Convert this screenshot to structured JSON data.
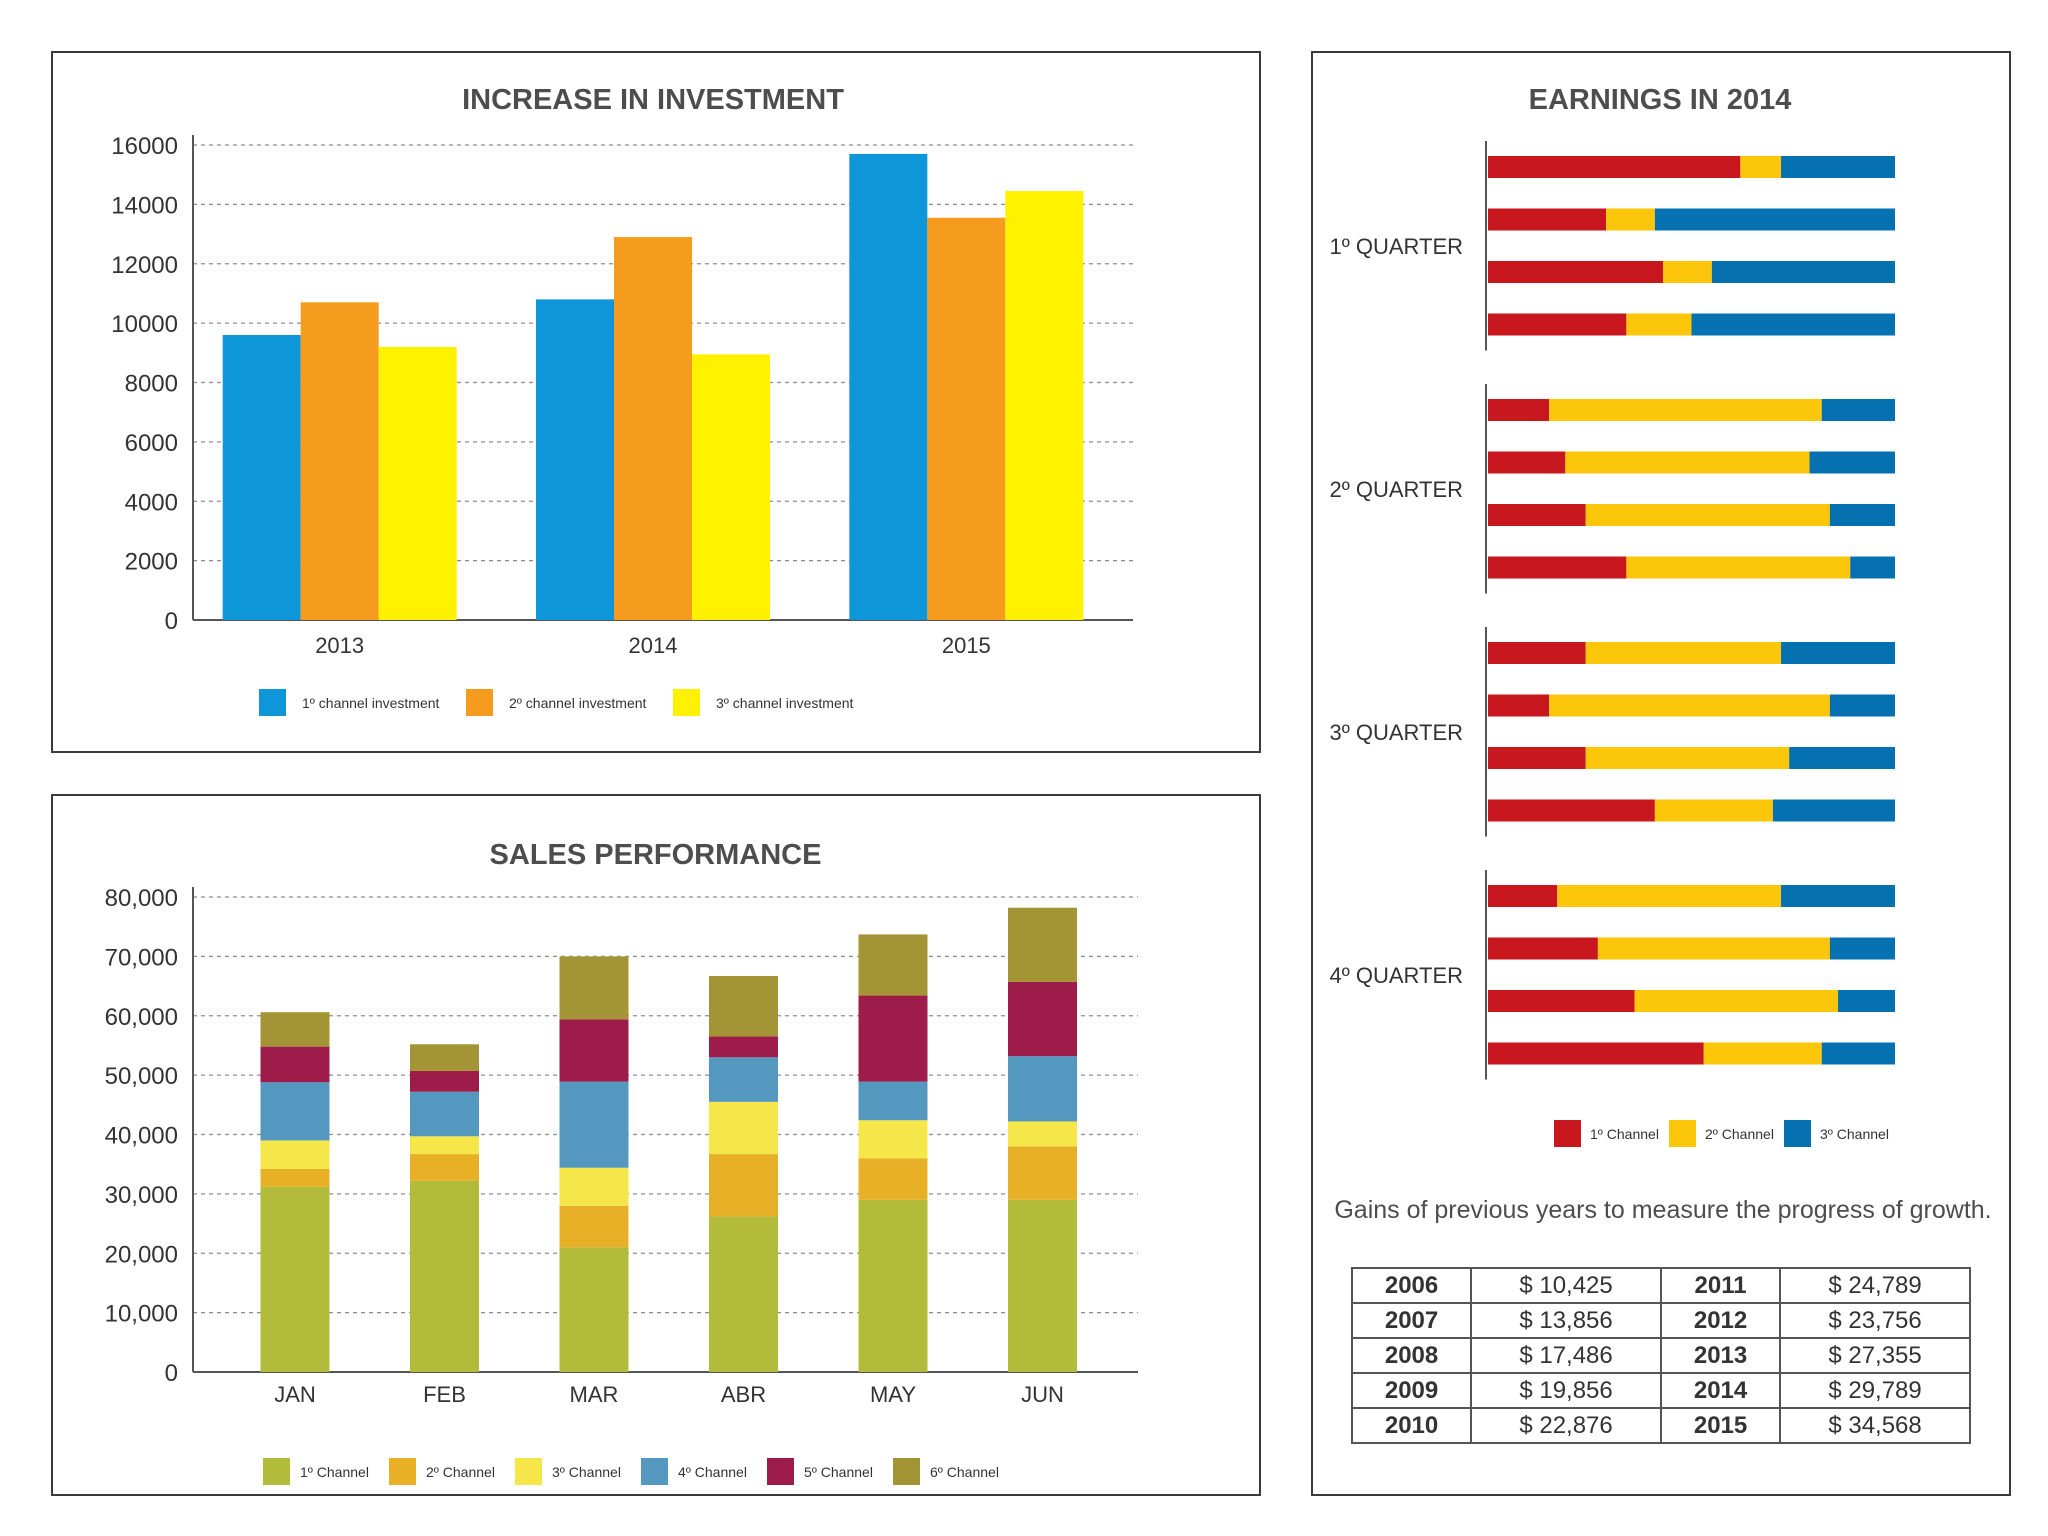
{
  "investment": {
    "chart_data": {
      "type": "bar",
      "title": "INCREASE IN INVESTMENT",
      "categories": [
        "2013",
        "2014",
        "2015"
      ],
      "series": [
        {
          "name": "1º channel investment",
          "color": "#0e97d8",
          "values": [
            9600,
            10800,
            15700
          ]
        },
        {
          "name": "2º channel investment",
          "color": "#f59b1e",
          "values": [
            10700,
            12900,
            13550
          ]
        },
        {
          "name": "3º channel investment",
          "color": "#fff200",
          "values": [
            9200,
            8950,
            14450
          ]
        }
      ],
      "ylim": [
        0,
        16000
      ],
      "yticks": [
        "0",
        "2000",
        "4000",
        "6000",
        "8000",
        "10000",
        "12000",
        "14000",
        "16000"
      ],
      "grid": true,
      "legend": "bottom"
    }
  },
  "sales": {
    "chart_data": {
      "type": "bar",
      "stacked": true,
      "title": "SALES PERFORMANCE",
      "categories": [
        "JAN",
        "FEB",
        "MAR",
        "ABR",
        "MAY",
        "JUN"
      ],
      "series": [
        {
          "name": "1º Channel",
          "color": "#b3bc3a",
          "values": [
            31200,
            32200,
            21000,
            26200,
            29000,
            29000
          ]
        },
        {
          "name": "2º Channel",
          "color": "#e8b027",
          "values": [
            3000,
            4500,
            7000,
            10500,
            7000,
            9000
          ]
        },
        {
          "name": "3º Channel",
          "color": "#f5e74a",
          "values": [
            4800,
            3000,
            6400,
            8800,
            6400,
            4200
          ]
        },
        {
          "name": "4º Channel",
          "color": "#5598bf",
          "values": [
            9800,
            7500,
            14500,
            7500,
            6500,
            11000
          ]
        },
        {
          "name": "5º Channel",
          "color": "#9e1c4a",
          "values": [
            6000,
            3500,
            10500,
            3500,
            14500,
            12500
          ]
        },
        {
          "name": "6º Channel",
          "color": "#a39535",
          "values": [
            5800,
            4500,
            10600,
            10200,
            10300,
            12500
          ]
        }
      ],
      "ylim": [
        0,
        80000
      ],
      "yticks": [
        "0",
        "10,000",
        "20,000",
        "30,000",
        "40,000",
        "50,000",
        "60,000",
        "70,000",
        "80,000"
      ],
      "grid": true,
      "legend": "bottom"
    }
  },
  "earnings": {
    "chart_data": {
      "type": "bar",
      "orientation": "horizontal",
      "stacked": true,
      "normalized": true,
      "title": "EARNINGS IN 2014",
      "groups": [
        "1º QUARTER",
        "2º QUARTER",
        "3º QUARTER",
        "4º QUARTER"
      ],
      "series_names": [
        "1º Channel",
        "2º Channel",
        "3º Channel"
      ],
      "colors": [
        "#c8171e",
        "#fcc60a",
        "#0571b0"
      ],
      "rows": [
        [
          [
            62,
            10,
            28
          ],
          [
            29,
            12,
            59
          ],
          [
            43,
            12,
            45
          ],
          [
            34,
            16,
            50
          ]
        ],
        [
          [
            15,
            67,
            18
          ],
          [
            19,
            60,
            21
          ],
          [
            24,
            60,
            16
          ],
          [
            34,
            55,
            11
          ]
        ],
        [
          [
            24,
            48,
            28
          ],
          [
            15,
            69,
            16
          ],
          [
            24,
            50,
            26
          ],
          [
            41,
            29,
            30
          ]
        ],
        [
          [
            17,
            55,
            28
          ],
          [
            27,
            57,
            16
          ],
          [
            36,
            50,
            14
          ],
          [
            53,
            29,
            18
          ]
        ]
      ],
      "legend": "bottom"
    },
    "caption": "Gains of previous years to measure the progress of growth.",
    "table": [
      [
        "2006",
        "$ 10,425",
        "2011",
        "$ 24,789"
      ],
      [
        "2007",
        "$ 13,856",
        "2012",
        "$ 23,756"
      ],
      [
        "2008",
        "$ 17,486",
        "2013",
        "$ 27,355"
      ],
      [
        "2009",
        "$ 19,856",
        "2014",
        "$ 29,789"
      ],
      [
        "2010",
        "$ 22,876",
        "2015",
        "$ 34,568"
      ]
    ]
  }
}
